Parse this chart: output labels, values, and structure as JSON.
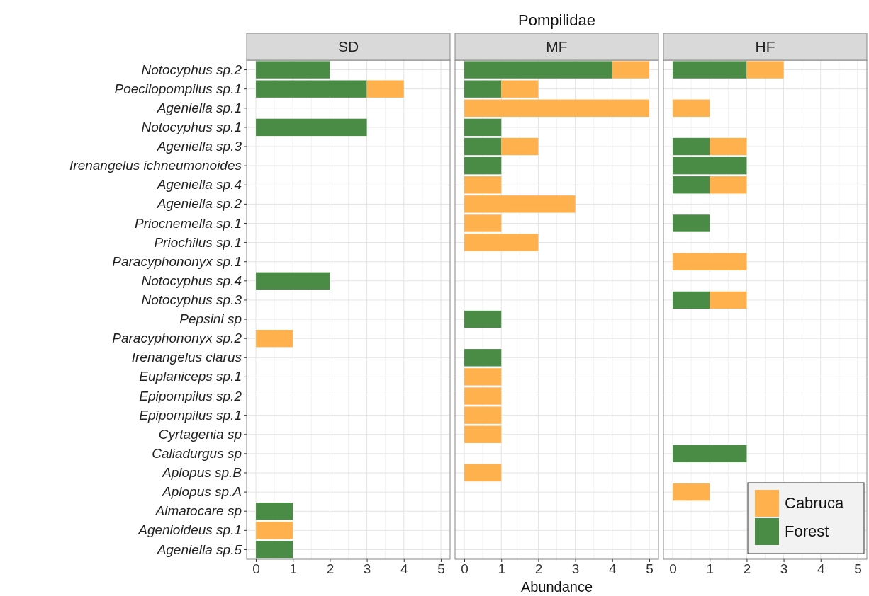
{
  "chart_data": [
    {
      "type": "bar",
      "orientation": "horizontal",
      "stacked": true,
      "subtitle": "SD",
      "categories": [
        "Notocyphus sp.2",
        "Poecilopompilus sp.1",
        "Ageniella sp.1",
        "Notocyphus sp.1",
        "Ageniella sp.3",
        "Irenangelus ichneumonoides",
        "Ageniella sp.4",
        "Ageniella sp.2",
        "Priocnemella sp.1",
        "Priochilus sp.1",
        "Paracyphononyx sp.1",
        "Notocyphus sp.4",
        "Notocyphus sp.3",
        "Pepsini sp",
        "Paracyphononyx sp.2",
        "Irenangelus clarus",
        "Euplaniceps sp.1",
        "Epipompilus sp.2",
        "Epipompilus sp.1",
        "Cyrtagenia sp",
        "Caliadurgus sp",
        "Aplopus sp.B",
        "Aplopus sp.A",
        "Aimatocare sp",
        "Agenioideus sp.1",
        "Ageniella sp.5"
      ],
      "series": [
        {
          "color": "#4a8c46",
          "values": [
            2,
            3,
            0,
            3,
            0,
            0,
            0,
            0,
            0,
            0,
            0,
            2,
            0,
            0,
            0,
            0,
            0,
            0,
            0,
            0,
            0,
            0,
            0,
            1,
            0,
            1
          ]
        },
        {
          "color": "#ffb14e",
          "values": [
            0,
            1,
            0,
            0,
            0,
            0,
            0,
            0,
            0,
            0,
            0,
            0,
            0,
            0,
            1,
            0,
            0,
            0,
            0,
            0,
            0,
            0,
            0,
            0,
            1,
            0
          ]
        }
      ],
      "xlim": [
        -0.25,
        5.25
      ],
      "xticks": [
        0,
        1,
        2,
        3,
        4,
        5
      ],
      "grid": true
    },
    {
      "type": "bar",
      "orientation": "horizontal",
      "stacked": true,
      "title": "Pompilidae",
      "subtitle": "MF",
      "xlabel": "Abundance",
      "tick_labels": "x",
      "categories": [
        null,
        null,
        null,
        null,
        null,
        null,
        null,
        null,
        null,
        null,
        null,
        null,
        null,
        null,
        null,
        null,
        null,
        null,
        null,
        null,
        null,
        null,
        null,
        null,
        null,
        null
      ],
      "series": [
        {
          "color": "#4a8c46",
          "values": [
            4,
            1,
            0,
            1,
            1,
            1,
            0,
            0,
            0,
            0,
            0,
            0,
            0,
            1,
            0,
            1,
            0,
            0,
            0,
            0,
            0,
            0,
            0,
            0,
            0,
            0
          ]
        },
        {
          "color": "#ffb14e",
          "values": [
            1,
            1,
            5,
            0,
            1,
            0,
            1,
            3,
            1,
            2,
            0,
            0,
            0,
            0,
            0,
            0,
            1,
            1,
            1,
            1,
            0,
            1,
            0,
            0,
            0,
            0
          ]
        }
      ],
      "xlim": [
        -0.25,
        5.25
      ],
      "xticks": [
        0,
        1,
        2,
        3,
        4,
        5
      ],
      "grid": true
    },
    {
      "type": "bar",
      "orientation": "horizontal",
      "stacked": true,
      "subtitle": "HF",
      "tick_labels": "x",
      "legend": "bottom right",
      "categories": [
        null,
        null,
        null,
        null,
        null,
        null,
        null,
        null,
        null,
        null,
        null,
        null,
        null,
        null,
        null,
        null,
        null,
        null,
        null,
        null,
        null,
        null,
        null,
        null,
        null,
        null
      ],
      "series": [
        {
          "name": "Forest",
          "color": "#4a8c46",
          "values": [
            2,
            0,
            0,
            0,
            1,
            2,
            1,
            0,
            1,
            0,
            0,
            0,
            1,
            0,
            0,
            0,
            0,
            0,
            0,
            0,
            2,
            0,
            0,
            0,
            0,
            0
          ]
        },
        {
          "name": "Cabruca",
          "color": "#ffb14e",
          "values": [
            1,
            0,
            1,
            0,
            1,
            0,
            1,
            0,
            0,
            0,
            2,
            0,
            1,
            0,
            0,
            0,
            0,
            0,
            0,
            0,
            0,
            0,
            1,
            0,
            0,
            0
          ]
        }
      ],
      "xlim": [
        -0.25,
        5.25
      ],
      "xticks": [
        0,
        1,
        2,
        3,
        4,
        5
      ],
      "grid": true
    }
  ]
}
